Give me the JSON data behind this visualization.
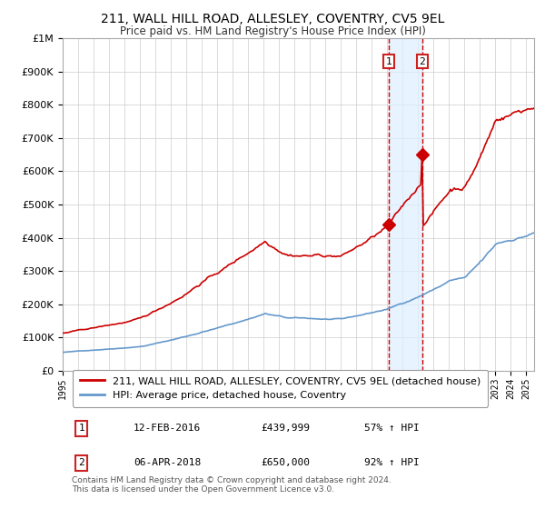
{
  "title": "211, WALL HILL ROAD, ALLESLEY, COVENTRY, CV5 9EL",
  "subtitle": "Price paid vs. HM Land Registry's House Price Index (HPI)",
  "red_label": "211, WALL HILL ROAD, ALLESLEY, COVENTRY, CV5 9EL (detached house)",
  "blue_label": "HPI: Average price, detached house, Coventry",
  "transaction1_date": "12-FEB-2016",
  "transaction1_price": 439999,
  "transaction1_hpi": "57% ↑ HPI",
  "transaction1_year": 2016.1,
  "transaction2_date": "06-APR-2018",
  "transaction2_price": 650000,
  "transaction2_hpi": "92% ↑ HPI",
  "transaction2_year": 2018.27,
  "ylim": [
    0,
    1000000
  ],
  "xlim_start": 1995,
  "xlim_end": 2025.5,
  "background_color": "#ffffff",
  "plot_bg_color": "#ffffff",
  "grid_color": "#cccccc",
  "red_color": "#cc0000",
  "blue_color": "#6699cc",
  "shade_color": "#ddeeff",
  "dashed_color": "#cc0000",
  "footer": "Contains HM Land Registry data © Crown copyright and database right 2024.\nThis data is licensed under the Open Government Licence v3.0."
}
